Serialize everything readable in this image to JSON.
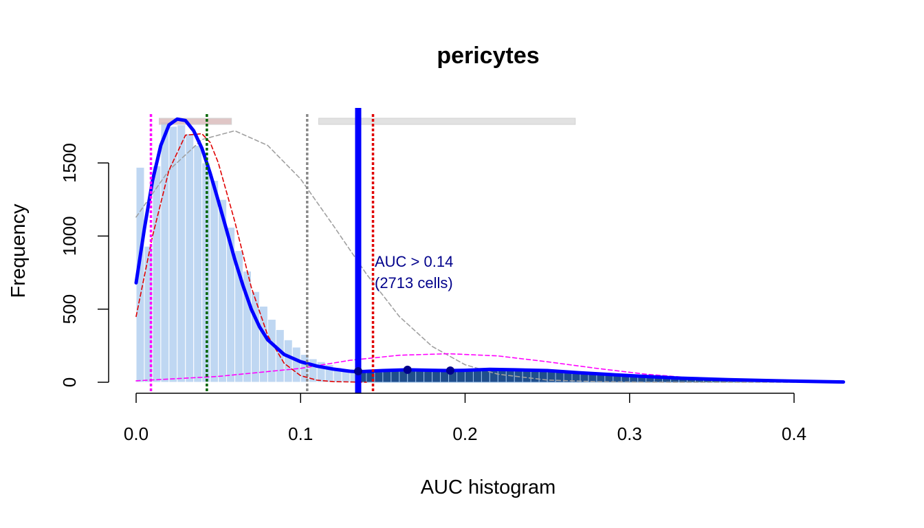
{
  "chart_data": {
    "type": "histogram",
    "title": "pericytes",
    "xlabel": "AUC histogram",
    "ylabel": "Frequency",
    "xlim": [
      0,
      0.43
    ],
    "ylim": [
      0,
      1800
    ],
    "x_ticks": [
      0.0,
      0.1,
      0.2,
      0.3,
      0.4
    ],
    "x_tick_labels": [
      "0.0",
      "0.1",
      "0.2",
      "0.3",
      "0.4"
    ],
    "y_ticks": [
      0,
      500,
      1000,
      1500
    ],
    "y_tick_labels": [
      "0",
      "500",
      "1000",
      "1500"
    ],
    "grid": false,
    "bin_width": 0.005,
    "bin_starts": [
      0.0,
      0.005,
      0.01,
      0.015,
      0.02,
      0.025,
      0.03,
      0.035,
      0.04,
      0.045,
      0.05,
      0.055,
      0.06,
      0.065,
      0.07,
      0.075,
      0.08,
      0.085,
      0.09,
      0.095,
      0.1,
      0.105,
      0.11,
      0.115,
      0.12,
      0.125,
      0.13,
      0.135,
      0.14,
      0.145,
      0.15,
      0.155,
      0.16,
      0.165,
      0.17,
      0.175,
      0.18,
      0.185,
      0.19,
      0.195,
      0.2,
      0.205,
      0.21,
      0.215,
      0.22,
      0.225,
      0.23,
      0.235,
      0.24,
      0.245,
      0.25,
      0.255,
      0.26,
      0.265,
      0.27,
      0.275,
      0.28,
      0.285,
      0.29,
      0.295,
      0.3,
      0.305,
      0.31,
      0.315,
      0.32,
      0.325,
      0.33,
      0.335,
      0.34,
      0.345,
      0.35,
      0.355,
      0.36,
      0.365,
      0.37,
      0.375,
      0.38,
      0.385,
      0.39,
      0.395,
      0.4,
      0.405,
      0.41,
      0.415,
      0.42,
      0.425
    ],
    "counts": [
      1470,
      930,
      1480,
      1780,
      1750,
      1760,
      1700,
      1620,
      1500,
      1380,
      1250,
      1060,
      900,
      760,
      620,
      520,
      430,
      360,
      290,
      240,
      190,
      160,
      140,
      120,
      100,
      90,
      80,
      70,
      75,
      70,
      75,
      80,
      75,
      80,
      85,
      80,
      78,
      80,
      82,
      85,
      80,
      85,
      90,
      85,
      88,
      85,
      80,
      78,
      80,
      75,
      72,
      70,
      65,
      62,
      58,
      55,
      52,
      48,
      45,
      42,
      40,
      37,
      34,
      31,
      28,
      26,
      24,
      22,
      20,
      18,
      16,
      14,
      12,
      11,
      10,
      9,
      8,
      7,
      6,
      5,
      4,
      4,
      3,
      3,
      2,
      2
    ],
    "highlight_from": 0.135,
    "colors": {
      "bars": "#bfd7f2",
      "bars_selected": "#1f4e8c",
      "density": "#0000ff",
      "threshold": "#0000ff",
      "dist_red": "#e00000",
      "dist_gray": "#a0a0a0",
      "dist_magenta": "#ff00ff",
      "green_line": "#006400"
    },
    "density_curve": {
      "x": [
        0.0,
        0.005,
        0.01,
        0.015,
        0.02,
        0.025,
        0.03,
        0.035,
        0.04,
        0.045,
        0.05,
        0.055,
        0.06,
        0.065,
        0.07,
        0.075,
        0.08,
        0.09,
        0.1,
        0.11,
        0.12,
        0.13,
        0.135,
        0.15,
        0.165,
        0.18,
        0.19,
        0.2,
        0.215,
        0.23,
        0.25,
        0.27,
        0.3,
        0.33,
        0.36,
        0.39,
        0.43
      ],
      "y": [
        680,
        1050,
        1380,
        1620,
        1760,
        1800,
        1790,
        1720,
        1600,
        1430,
        1240,
        1040,
        840,
        660,
        500,
        380,
        290,
        190,
        140,
        110,
        90,
        75,
        72,
        80,
        85,
        82,
        80,
        82,
        88,
        85,
        80,
        65,
        45,
        28,
        18,
        10,
        2
      ]
    },
    "dist_red_curve": {
      "x": [
        0.0,
        0.01,
        0.02,
        0.03,
        0.04,
        0.045,
        0.05,
        0.06,
        0.07,
        0.08,
        0.09,
        0.1,
        0.11,
        0.12,
        0.14
      ],
      "y": [
        450,
        1000,
        1450,
        1690,
        1700,
        1640,
        1500,
        1100,
        650,
        320,
        130,
        45,
        14,
        4,
        0
      ]
    },
    "dist_gray_curve": {
      "x": [
        0.0,
        0.02,
        0.04,
        0.06,
        0.08,
        0.1,
        0.12,
        0.14,
        0.16,
        0.18,
        0.2,
        0.22,
        0.25,
        0.28,
        0.31,
        0.34,
        0.38,
        0.43
      ],
      "y": [
        1130,
        1450,
        1660,
        1720,
        1620,
        1390,
        1070,
        740,
        450,
        245,
        120,
        55,
        15,
        4,
        1,
        0,
        0,
        0
      ]
    },
    "dist_magenta_curve": {
      "x": [
        0.0,
        0.05,
        0.1,
        0.13,
        0.16,
        0.19,
        0.22,
        0.25,
        0.28,
        0.31,
        0.34,
        0.37,
        0.4,
        0.43
      ],
      "y": [
        10,
        40,
        95,
        150,
        185,
        195,
        180,
        140,
        95,
        55,
        28,
        12,
        5,
        1
      ]
    },
    "vertical_lines": [
      {
        "x": 0.009,
        "style": "dotted",
        "color": "#ff00ff"
      },
      {
        "x": 0.043,
        "style": "dotted",
        "color": "#006400"
      },
      {
        "x": 0.104,
        "style": "dotted",
        "color": "#888888"
      },
      {
        "x": 0.144,
        "style": "dotted",
        "color": "#e00000"
      },
      {
        "x": 0.135,
        "style": "solid",
        "color": "#0000ff"
      }
    ],
    "points": [
      {
        "x": 0.135,
        "y": 75
      },
      {
        "x": 0.165,
        "y": 85
      },
      {
        "x": 0.191,
        "y": 80
      }
    ],
    "range_bars": [
      {
        "x0": 0.014,
        "x1": 0.058,
        "color": "#d9b8b8"
      },
      {
        "x0": 0.111,
        "x1": 0.267,
        "color": "#dcdcdc"
      }
    ],
    "annotation": {
      "line1": "AUC > 0.14",
      "line2": "(2713 cells)"
    }
  }
}
